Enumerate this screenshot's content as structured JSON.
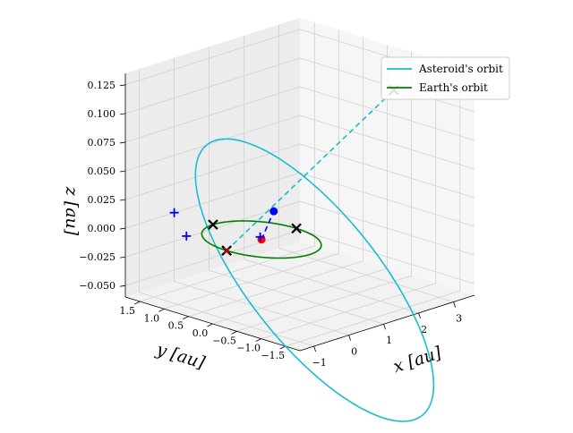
{
  "chart_data": {
    "type": "line",
    "projection": "3d",
    "title": "",
    "xlabel": "x [au]",
    "ylabel": "y [au]",
    "zlabel": "z [au]",
    "x_ticks": [
      "−1",
      "0",
      "1",
      "2",
      "3"
    ],
    "y_ticks": [
      "1.5",
      "1.0",
      "0.5",
      "0.0",
      "−0.5",
      "−1.0",
      "−1.5"
    ],
    "z_ticks": [
      "0.125",
      "0.100",
      "0.075",
      "0.050",
      "0.025",
      "0.000",
      "−0.025",
      "−0.050"
    ],
    "xlim": [
      -1.4,
      3.6
    ],
    "ylim": [
      -1.8,
      1.8
    ],
    "zlim": [
      -0.06,
      0.135
    ],
    "grid": true,
    "legend_position": "top-right",
    "series": [
      {
        "name": "Asteroid's orbit",
        "color": "#17becf",
        "kind": "orbit",
        "semi_major_axis": 2.0,
        "eccentricity": 0.45,
        "perihelion_angle_deg": 135,
        "inclination_deg": 3.0
      },
      {
        "name": "Earth's orbit",
        "color": "#008000",
        "kind": "orbit",
        "semi_major_axis": 1.0,
        "eccentricity": 0.0
      }
    ],
    "markers": [
      {
        "kind": "sun",
        "color": "#ff0000",
        "x": 0.0,
        "y": 0.0,
        "z": 0.0
      },
      {
        "kind": "asteroid",
        "color": "#0000ff",
        "x": -0.9,
        "y": -0.9,
        "z": 0.045
      },
      {
        "kind": "node",
        "color": "#000000",
        "x": 1.0,
        "y": 0.0,
        "z": 0.0
      },
      {
        "kind": "node",
        "color": "#000000",
        "x": 0.0,
        "y": 1.0,
        "z": 0.0
      },
      {
        "kind": "node",
        "color": "#000000",
        "x": -1.0,
        "y": 0.0,
        "z": 0.0
      },
      {
        "kind": "node-red",
        "color": "#ff0000",
        "x": -1.0,
        "y": 0.0,
        "z": 0.0
      },
      {
        "kind": "node-red",
        "color": "#ff0000",
        "x": 2.4,
        "y": -1.0,
        "z": 0.12
      },
      {
        "kind": "plus",
        "color": "#0000ff",
        "x": -0.9,
        "y": 0.9,
        "z": 0.0
      },
      {
        "kind": "plus",
        "color": "#0000ff",
        "x": 0.0,
        "y": 1.8,
        "z": 0.0
      },
      {
        "kind": "plus",
        "color": "#0000ff",
        "x": 0.1,
        "y": 0.1,
        "z": 0.0
      }
    ],
    "dashed_lines": [
      {
        "color": "#0000ff",
        "from": [
          0.0,
          0.0,
          0.0
        ],
        "to": [
          -0.9,
          -0.9,
          0.045
        ]
      },
      {
        "color": "#17becf",
        "from": [
          -1.0,
          0.0,
          0.0
        ],
        "to": [
          2.4,
          -1.0,
          0.12
        ]
      }
    ]
  }
}
